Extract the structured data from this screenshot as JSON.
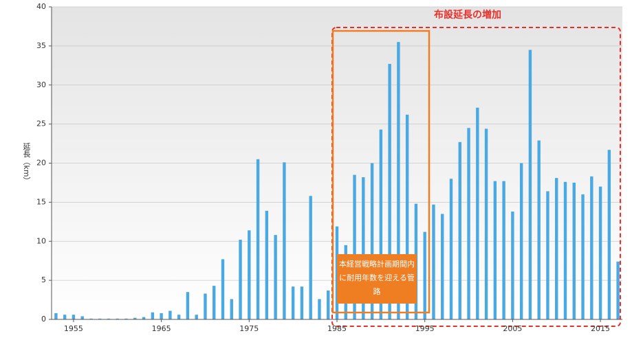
{
  "chart_data": {
    "type": "bar",
    "y_label": "延長（km）",
    "annotations": {
      "highlight_title": "布設延長の増加",
      "box_text": "本経営戦略計画期間内に耐用年数を迎える管路"
    },
    "categories": [
      null,
      null,
      "1955",
      null,
      null,
      null,
      null,
      null,
      null,
      null,
      null,
      null,
      "1965",
      null,
      null,
      null,
      null,
      null,
      null,
      null,
      null,
      null,
      "1975",
      null,
      null,
      null,
      null,
      null,
      null,
      null,
      null,
      null,
      "1985",
      null,
      null,
      null,
      null,
      null,
      null,
      null,
      null,
      null,
      "1995",
      null,
      null,
      null,
      null,
      null,
      null,
      null,
      null,
      null,
      "2005",
      null,
      null,
      null,
      null,
      null,
      null,
      null,
      null,
      null,
      "2015",
      null,
      null
    ],
    "values": [
      0.8,
      0.6,
      0.6,
      0.4,
      0.1,
      0.1,
      0.1,
      0.1,
      0.1,
      0.2,
      0.3,
      0.9,
      0.8,
      1.1,
      0.6,
      3.5,
      0.6,
      3.3,
      4.3,
      7.7,
      2.6,
      10.2,
      11.4,
      20.5,
      13.9,
      10.8,
      20.1,
      4.2,
      4.2,
      15.8,
      2.6,
      3.7,
      11.9,
      9.5,
      18.5,
      18.2,
      20.0,
      24.3,
      32.7,
      35.5,
      26.2,
      14.8,
      11.2,
      14.7,
      13.5,
      18.0,
      22.7,
      24.5,
      27.1,
      24.4,
      17.7,
      17.7,
      13.8,
      20.0,
      34.5,
      22.9,
      16.4,
      18.1,
      17.6,
      17.5,
      16.0,
      18.3,
      17.0,
      21.7,
      7.4
    ],
    "color": "#4aa8e2",
    "ylim": [
      0,
      40
    ],
    "yticks": [
      0,
      5,
      10,
      15,
      20,
      25,
      30,
      35,
      40
    ],
    "grid": true
  }
}
